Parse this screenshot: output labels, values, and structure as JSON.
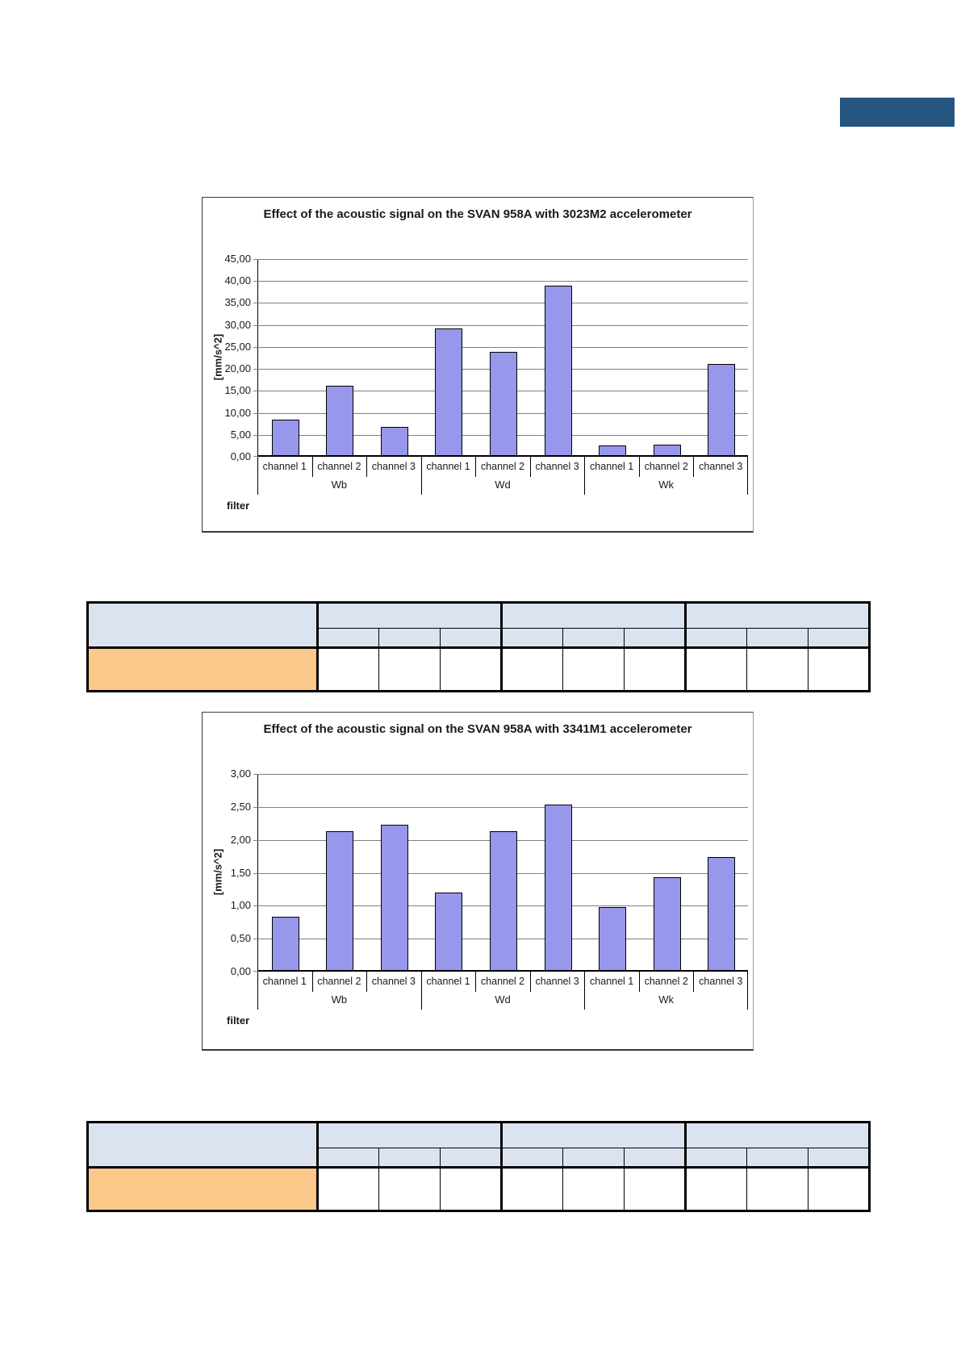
{
  "page": {
    "accent_bar_color": "#24567F"
  },
  "chart_data": [
    {
      "type": "bar",
      "title": "Effect of the acoustic signal on the SVAN 958A with 3023M2 accelerometer",
      "xlabel": "filter",
      "ylabel": "[mm/s^2]",
      "ylim": [
        0,
        45
      ],
      "ytick_step": 5,
      "ytick_labels": [
        "0,00",
        "5,00",
        "10,00",
        "15,00",
        "20,00",
        "25,00",
        "30,00",
        "35,00",
        "40,00",
        "45,00"
      ],
      "grid": true,
      "legend": false,
      "bar_color": "#9797EC",
      "groups": [
        "Wb",
        "Wd",
        "Wk"
      ],
      "categories": [
        "channel 1",
        "channel 2",
        "channel 3",
        "channel 1",
        "channel 2",
        "channel 3",
        "channel 1",
        "channel 2",
        "channel 3"
      ],
      "values": [
        8.1,
        15.8,
        6.5,
        28.8,
        23.6,
        38.6,
        2.2,
        2.4,
        20.7
      ]
    },
    {
      "type": "bar",
      "title": "Effect of the acoustic signal on the SVAN 958A with 3341M1 accelerometer",
      "xlabel": "filter",
      "ylabel": "[mm/s^2]",
      "ylim": [
        0,
        3
      ],
      "ytick_step": 0.5,
      "ytick_labels": [
        "0,00",
        "0,50",
        "1,00",
        "1,50",
        "2,00",
        "2,50",
        "3,00"
      ],
      "grid": true,
      "legend": false,
      "bar_color": "#9797EC",
      "groups": [
        "Wb",
        "Wd",
        "Wk"
      ],
      "categories": [
        "channel 1",
        "channel 2",
        "channel 3",
        "channel 1",
        "channel 2",
        "channel 3",
        "channel 1",
        "channel 2",
        "channel 3"
      ],
      "values": [
        0.81,
        2.11,
        2.2,
        1.17,
        2.11,
        2.51,
        0.96,
        1.41,
        1.71
      ]
    }
  ],
  "tables": [
    {
      "header_fill": "#DCE3F0",
      "label_fill": "#FCC98B",
      "left_header_text": "",
      "group_headers": [
        "",
        "",
        ""
      ],
      "sub_headers": [
        "",
        "",
        "",
        "",
        "",
        "",
        "",
        "",
        ""
      ],
      "row_label": "",
      "values": [
        "",
        "",
        "",
        "",
        "",
        "",
        "",
        "",
        ""
      ]
    },
    {
      "header_fill": "#DCE3F0",
      "label_fill": "#FCC98B",
      "left_header_text": "",
      "group_headers": [
        "",
        "",
        ""
      ],
      "sub_headers": [
        "",
        "",
        "",
        "",
        "",
        "",
        "",
        "",
        ""
      ],
      "row_label": "",
      "values": [
        "",
        "",
        "",
        "",
        "",
        "",
        "",
        "",
        ""
      ]
    }
  ]
}
